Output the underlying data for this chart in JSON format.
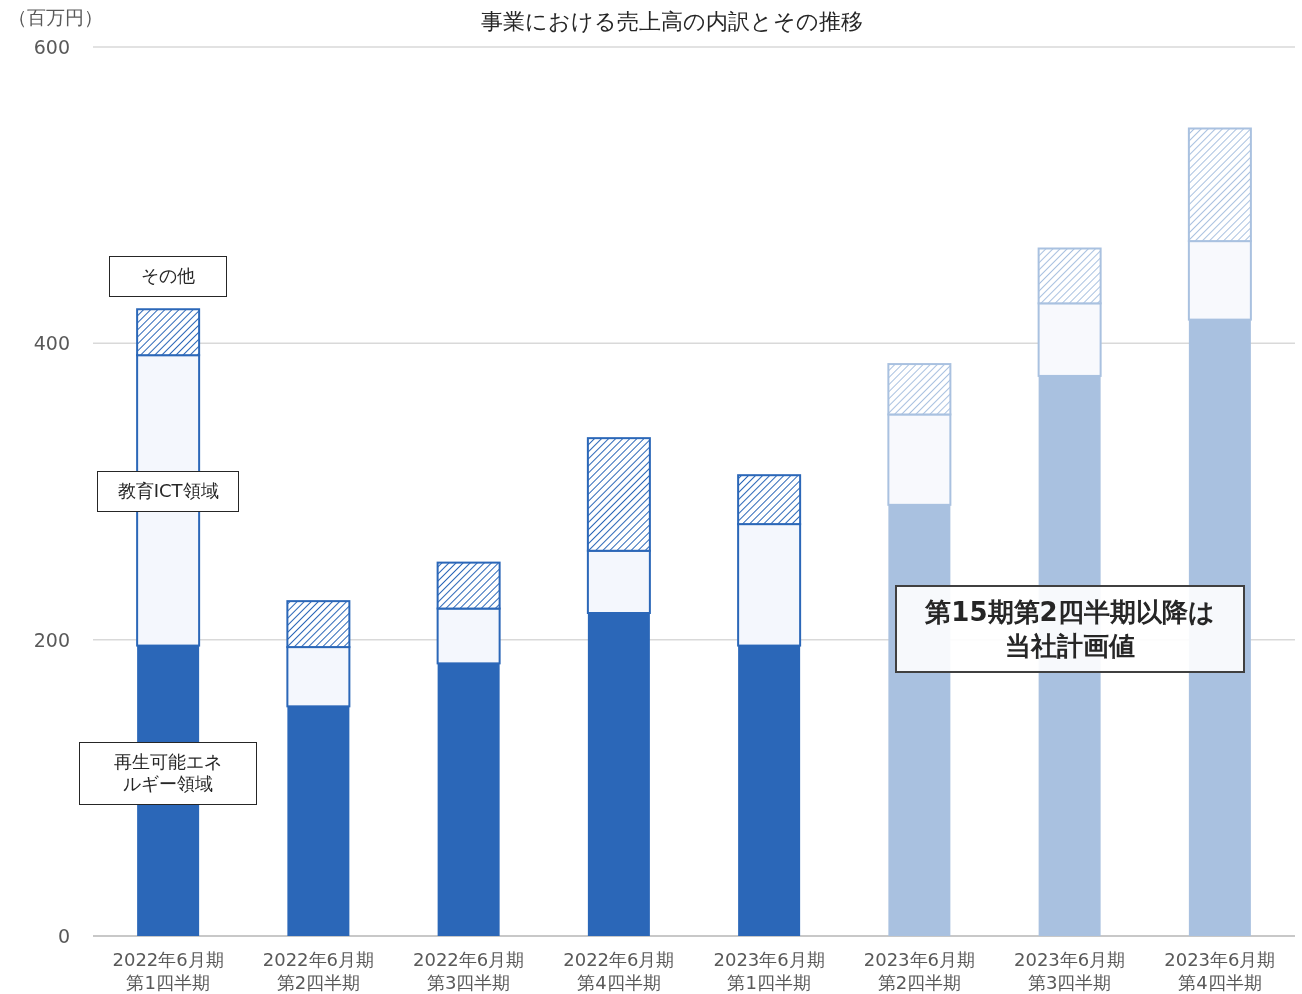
{
  "chart_data": {
    "type": "bar",
    "stacked": true,
    "title": "事業における売上高の内訳とその推移",
    "ylabel": "（百万円）",
    "categories": [
      "2022年6月期第1四半期",
      "2022年6月期第2四半期",
      "2022年6月期第3四半期",
      "2022年6月期第4四半期",
      "2023年6月期第1四半期",
      "2023年6月期第2四半期",
      "2023年6月期第3四半期",
      "2023年6月期第4四半期"
    ],
    "series": [
      {
        "name": "再生可能エネルギー領域",
        "colors": [
          "#2b67b8",
          "#2b67b8",
          "#2b67b8",
          "#2b67b8",
          "#2b67b8",
          "#a9c1e0",
          "#a9c1e0",
          "#a9c1e0"
        ],
        "values": [
          196,
          155,
          184,
          218,
          196,
          291,
          378,
          416
        ]
      },
      {
        "name": "教育ICT領域",
        "colors": [
          "#f4f7fd",
          "#f4f7fd",
          "#f4f7fd",
          "#f4f7fd",
          "#f4f7fd",
          "#f8f9fd",
          "#f8f9fd",
          "#f8f9fd"
        ],
        "values": [
          196,
          40,
          37,
          42,
          82,
          61,
          49,
          53
        ]
      },
      {
        "name": "その他",
        "colors": [
          "#2b67b8",
          "#2b67b8",
          "#2b67b8",
          "#2b67b8",
          "#2b67b8",
          "#a9c1e0",
          "#a9c1e0",
          "#a9c1e0"
        ],
        "values": [
          31,
          31,
          31,
          76,
          33,
          34,
          37,
          76
        ]
      }
    ],
    "ylim": [
      0,
      600
    ],
    "yticks": [
      0,
      200,
      400,
      600
    ],
    "grid": "y",
    "annotations": [
      "第15期第2四半期以降は当社計画値"
    ]
  }
}
